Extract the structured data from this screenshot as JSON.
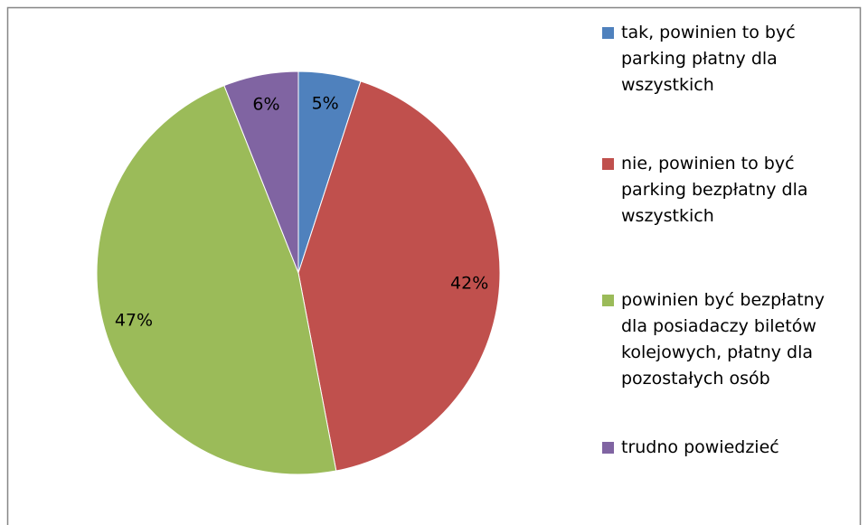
{
  "chart_data": {
    "type": "pie",
    "categories": [
      "tak, powinien to być parking płatny dla wszystkich",
      "nie, powinien to być parking bezpłatny dla wszystkich",
      "powinien być bezpłatny dla posiadaczy biletów kolejowych, płatny dla pozostałych osób",
      "trudno powiedzieć"
    ],
    "values": [
      5,
      42,
      47,
      6
    ],
    "value_labels": [
      "5%",
      "42%",
      "47%",
      "6%"
    ],
    "colors": [
      "#4f81bd",
      "#c0504d",
      "#9bbb59",
      "#8064a2"
    ],
    "legend": "right"
  }
}
